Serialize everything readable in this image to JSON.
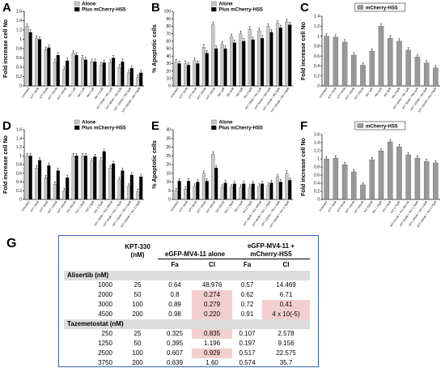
{
  "chart_data": [
    {
      "id": "A",
      "type": "bar",
      "panel_label": "A",
      "ylabel": "Fold increase cell No",
      "ylim": [
        0,
        1.6
      ],
      "yticks": [
        "0",
        "0.2",
        "0.4",
        "0.6",
        "0.8",
        "1",
        "1.2",
        "1.4",
        "1.6"
      ],
      "categories": [
        "Untreated",
        "KPT 25nM",
        "KPT 50nM",
        "KPT 100nM",
        "KPT 200nM",
        "Alis 1 µM",
        "Alis 2 µM",
        "Alis 3 µM",
        "Alis 4.5 µM",
        "KPT 25nM + Alis 1µM",
        "KPT 50nM + Alis 2µM",
        "KPT 100nM + Alis 3µM",
        "KPT 200nM + Alis 4.5µM"
      ],
      "series": [
        {
          "name": "Alone",
          "color": "#c8c8c8",
          "values": [
            1.28,
            1.02,
            0.78,
            0.52,
            0.36,
            0.7,
            0.6,
            0.52,
            0.45,
            0.5,
            0.4,
            0.28,
            0.18
          ]
        },
        {
          "name": "Plus mCherry-HS5",
          "color": "#000000",
          "values": [
            1.15,
            1.0,
            0.82,
            0.66,
            0.54,
            0.66,
            0.56,
            0.52,
            0.5,
            0.6,
            0.52,
            0.38,
            0.28
          ]
        }
      ],
      "legend": [
        "Alone",
        "Plus mCherry-HS5"
      ],
      "legend_position": "top-right"
    },
    {
      "id": "B",
      "type": "bar",
      "panel_label": "B",
      "ylabel": "% Apoptotic cells",
      "ylim": [
        0,
        100
      ],
      "yticks": [
        "0",
        "10",
        "20",
        "30",
        "40",
        "50",
        "60",
        "70",
        "80",
        "90",
        "100"
      ],
      "categories": [
        "Untreated",
        "KPT 25nM",
        "KPT 50nM",
        "KPT 100nM",
        "KPT 200nM",
        "Alis 1µM",
        "Alis 2µM",
        "Alis 3µM",
        "Alis 4.5µM",
        "KPT 25nM + Alis 1µM",
        "KPT 50nM + Alis 2µM",
        "KPT 100nM + Alis 3µM",
        "KPT 200nM + Alis 4.5µM"
      ],
      "series": [
        {
          "name": "Alone",
          "color": "#c8c8c8",
          "values": [
            32,
            30,
            34,
            52,
            82,
            56,
            66,
            70,
            76,
            74,
            80,
            84,
            86
          ]
        },
        {
          "name": "Plus mCherry-HS5",
          "color": "#000000",
          "values": [
            30,
            28,
            30,
            44,
            50,
            50,
            58,
            60,
            62,
            64,
            72,
            78,
            82
          ]
        }
      ],
      "legend": [
        "Alone",
        "Plus mCherry-HS5"
      ],
      "legend_position": "top-center"
    },
    {
      "id": "C",
      "type": "bar",
      "panel_label": "C",
      "ylabel": "Fold increase cell No",
      "ylim": [
        0,
        1.4
      ],
      "yticks": [
        "0",
        "0.2",
        "0.4",
        "0.6",
        "0.8",
        "1",
        "1.2",
        "1.4"
      ],
      "categories": [
        "Untreated",
        "KPT 25nM",
        "KPT 50nM",
        "KPT 100nM",
        "KPT 200nM",
        "Alis 1µM",
        "Alis 2µM",
        "Alis 3µM",
        "Alis 4.5µM",
        "KPT 25nM + Alis 1µM",
        "KPT 50nM + Alis 2µM",
        "KPT 100nM + Alis 3µM",
        "KPT 200nM + Alis 4.5µM"
      ],
      "series": [
        {
          "name": "mCherry-HS5",
          "color": "#999999",
          "values": [
            1.0,
            0.98,
            0.88,
            0.62,
            0.42,
            0.7,
            1.2,
            0.96,
            0.9,
            0.72,
            0.58,
            0.46,
            0.36
          ]
        }
      ],
      "legend": [
        "mCherry-HS5"
      ],
      "legend_position": "top-center"
    },
    {
      "id": "D",
      "type": "bar",
      "panel_label": "D",
      "ylabel": "Fold increase cell No",
      "ylim": [
        0,
        1.6
      ],
      "yticks": [
        "0",
        "0.2",
        "0.4",
        "0.6",
        "0.8",
        "1",
        "1.2",
        "1.4",
        "1.6"
      ],
      "categories": [
        "Untreated",
        "KPT 25nM",
        "KPT 50nM",
        "KPT 100nM",
        "KPT 200nM",
        "TAZ 250nM",
        "TAZ 1.25µM",
        "TAZ 2.5µM",
        "TAZ 3.75µM",
        "KPT 25nM + TAZ 250nM",
        "KPT 50nM + TAZ 1.25µM",
        "KPT 100nM + TAZ 2.5µM",
        "KPT 200nM + TAZ 3.75µM"
      ],
      "series": [
        {
          "name": "Alone",
          "color": "#c8c8c8",
          "values": [
            1.0,
            0.72,
            0.5,
            0.35,
            0.2,
            1.0,
            1.0,
            0.88,
            0.9,
            0.72,
            0.45,
            0.3,
            0.18
          ]
        },
        {
          "name": "Plus mCherry-HS5",
          "color": "#000000",
          "values": [
            1.0,
            0.9,
            0.78,
            0.66,
            0.5,
            1.0,
            1.0,
            0.98,
            1.1,
            0.82,
            0.66,
            0.56,
            0.52
          ]
        }
      ],
      "legend": [
        "Alone",
        "Plus mCherry-HS5"
      ],
      "legend_position": "top-right"
    },
    {
      "id": "E",
      "type": "bar",
      "panel_label": "E",
      "ylabel": "% Apoptotic cells",
      "ylim": [
        0,
        40
      ],
      "yticks": [
        "0",
        "5",
        "10",
        "15",
        "20",
        "25",
        "30",
        "35",
        "40"
      ],
      "categories": [
        "Untreated",
        "KPT 25nM",
        "KPT 50nM",
        "KPT 100nM",
        "KPT 200nM",
        "TAZ 250nM",
        "TAZ 1.25µM",
        "TAZ 2.5µM",
        "TAZ 3.75µM",
        "KPT 25nM + TAZ 250nM",
        "KPT 50nM + TAZ 1.25µM",
        "KPT 100nM + TAZ 2.5µM",
        "KPT 200nM + TAZ 3.75µM"
      ],
      "series": [
        {
          "name": "Alone",
          "color": "#c8c8c8",
          "values": [
            5.0,
            6.0,
            7.5,
            15.0,
            26.0,
            7.0,
            7.0,
            7.0,
            7.0,
            7.5,
            8.0,
            13.0,
            15.0
          ]
        },
        {
          "name": "Plus mCherry-HS5",
          "color": "#000000",
          "values": [
            10.5,
            10.5,
            10.0,
            10.5,
            18.0,
            9.5,
            9.0,
            9.0,
            9.0,
            9.0,
            9.5,
            10.0,
            11.0
          ]
        }
      ],
      "legend": [
        "Alone",
        "Plus mCherry-HS5"
      ],
      "legend_position": "top-center"
    },
    {
      "id": "F",
      "type": "bar",
      "panel_label": "F",
      "ylabel": "Fold increase cell No",
      "ylim": [
        0,
        1.6
      ],
      "yticks": [
        "0",
        "0.2",
        "0.4",
        "0.6",
        "0.8",
        "1",
        "1.2",
        "1.4",
        "1.6"
      ],
      "categories": [
        "Untreated",
        "KPT 25nM",
        "KPT 50nM",
        "KPT 100nM",
        "KPT 200nM",
        "TAZ 250nM",
        "TAZ 1.25µM",
        "TAZ 2.5µM",
        "TAZ 3.75µM",
        "KPT 25 nM + TAZ 250 nM",
        "KPT 50nM + TAZ 1.25µM",
        "KPT 100nM + TAZ 2.5µM",
        "KPT 200nM + TAZ 3.75µM"
      ],
      "series": [
        {
          "name": "mCherry-HS5",
          "color": "#999999",
          "values": [
            1.0,
            1.02,
            0.86,
            0.68,
            0.36,
            0.98,
            1.2,
            1.42,
            1.3,
            1.1,
            1.02,
            0.94,
            0.9
          ]
        }
      ],
      "legend": [
        "mCherry-HS5"
      ],
      "legend_position": "top-center"
    },
    {
      "id": "G",
      "type": "table",
      "panel_label": "G",
      "column_headers": {
        "kpt": "KPT-330 (nM)",
        "group_alone": "eGFP-MV4-11 alone",
        "group_hs5": "eGFP-MV4-11 + mCherry-HS5",
        "fa": "Fa",
        "ci": "CI"
      },
      "groups": [
        {
          "label": "Alisertib (nM)",
          "rows": [
            {
              "drug": "1000",
              "kpt": "25",
              "fa1": "0.64",
              "ci1": "48.976",
              "fa2": "0.57",
              "ci2": "14.469"
            },
            {
              "drug": "2000",
              "kpt": "50",
              "fa1": "0.8",
              "ci1": "0.274",
              "fa2": "0.62",
              "ci2": "6.71"
            },
            {
              "drug": "3000",
              "kpt": "100",
              "fa1": "0.89",
              "ci1": "0.279",
              "fa2": "0.72",
              "ci2": "0.41"
            },
            {
              "drug": "4500",
              "kpt": "200",
              "fa1": "0.98",
              "ci1": "0.220",
              "fa2": "0.91",
              "ci2": "4 x 10(-5)"
            }
          ]
        },
        {
          "label": "Tazemetostat (nM)",
          "rows": [
            {
              "drug": "250",
              "kpt": "25",
              "fa1": "0.325",
              "ci1": "0.835",
              "fa2": "0.107",
              "ci2": "2.578"
            },
            {
              "drug": "1250",
              "kpt": "50",
              "fa1": "0.395",
              "ci1": "1.196",
              "fa2": "0.197",
              "ci2": "9.156"
            },
            {
              "drug": "2500",
              "kpt": "100",
              "fa1": "0.607",
              "ci1": "0.929",
              "fa2": "0.517",
              "ci2": "22.575"
            },
            {
              "drug": "3750",
              "kpt": "200",
              "fa1": "0.639",
              "ci1": "1.60",
              "fa2": "0.574",
              "ci2": "35.7"
            }
          ]
        }
      ],
      "highlight_color": "#f3cfcf",
      "group_row_color": "#dcdcdc",
      "border_color": "#3b63b3"
    }
  ]
}
